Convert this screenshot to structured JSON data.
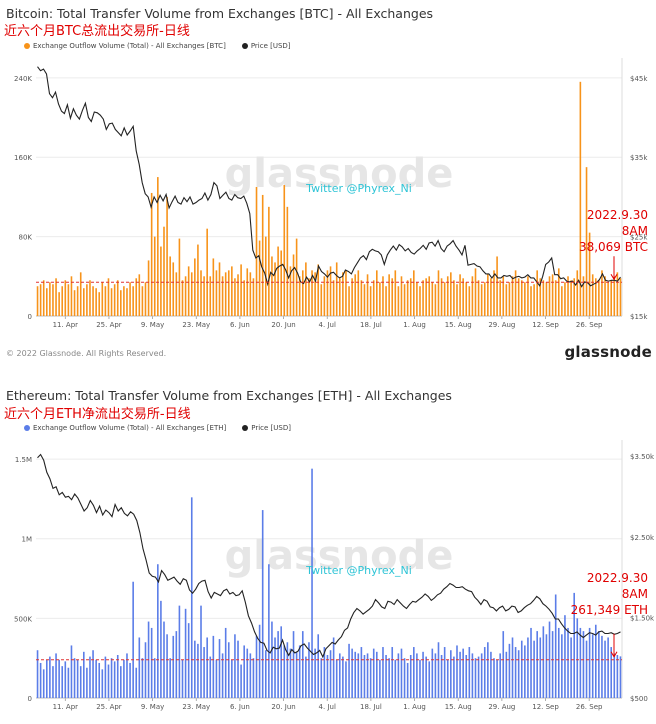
{
  "chart_data": [
    {
      "type": "bar",
      "title": "Bitcoin: Total Transfer Volume from Exchanges [BTC] - All Exchanges",
      "subtitle": "近六个月BTC总流出交易所-日线",
      "legend": [
        "Exchange Outflow Volume (Total) - All Exchanges [BTC]",
        "Price [USD]"
      ],
      "colors": {
        "bars": "#f7931a",
        "price": "#222222",
        "threshold": "#e03030"
      },
      "x_tick_labels": [
        "11. Apr",
        "25. Apr",
        "9. May",
        "23. May",
        "6. Jun",
        "20. Jun",
        "4. Jul",
        "18. Jul",
        "1. Aug",
        "15. Aug",
        "29. Aug",
        "12. Sep",
        "26. Sep"
      ],
      "y_left_ticks": [
        "0",
        "80K",
        "160K",
        "240K"
      ],
      "y_left_values": [
        0,
        80000,
        160000,
        240000
      ],
      "y_left_range": [
        0,
        260000
      ],
      "y_right_ticks": [
        "$15k",
        "$25k",
        "$35k",
        "$45k"
      ],
      "y_right_values": [
        15000,
        25000,
        35000,
        45000
      ],
      "y_right_range": [
        15000,
        47500
      ],
      "watermark": "glassnode",
      "overlay_text": "Twitter @Phyrex_Ni",
      "annotation": [
        "2022.9.30",
        "8AM",
        "38,069 BTC"
      ],
      "threshold_value": 34000,
      "grid": true,
      "outflow": [
        30000,
        32000,
        36000,
        28000,
        34000,
        32000,
        38000,
        24000,
        30000,
        36000,
        32000,
        40000,
        26000,
        30000,
        44000,
        28000,
        32000,
        36000,
        30000,
        28000,
        24000,
        34000,
        30000,
        38000,
        28000,
        32000,
        36000,
        26000,
        30000,
        28000,
        34000,
        30000,
        38000,
        42000,
        30000,
        34000,
        56000,
        124000,
        80000,
        140000,
        70000,
        90000,
        120000,
        60000,
        54000,
        44000,
        78000,
        36000,
        40000,
        50000,
        44000,
        58000,
        72000,
        46000,
        40000,
        88000,
        40000,
        58000,
        46000,
        54000,
        40000,
        44000,
        46000,
        50000,
        38000,
        42000,
        52000,
        36000,
        48000,
        44000,
        38000,
        130000,
        76000,
        122000,
        80000,
        110000,
        60000,
        54000,
        70000,
        66000,
        132000,
        110000,
        50000,
        62000,
        78000,
        40000,
        46000,
        54000,
        38000,
        46000,
        44000,
        52000,
        32000,
        40000,
        46000,
        50000,
        36000,
        54000,
        38000,
        44000,
        46000,
        30000,
        38000,
        42000,
        46000,
        36000,
        32000,
        42000,
        30000,
        36000,
        46000,
        34000,
        40000,
        30000,
        42000,
        38000,
        46000,
        30000,
        40000,
        32000,
        36000,
        38000,
        46000,
        34000,
        30000,
        36000,
        38000,
        40000,
        34000,
        32000,
        46000,
        38000,
        34000,
        40000,
        44000,
        36000,
        32000,
        42000,
        38000,
        34000,
        30000,
        40000,
        48000,
        36000,
        32000,
        34000,
        42000,
        38000,
        46000,
        60000,
        36000,
        40000,
        32000,
        34000,
        40000,
        46000,
        38000,
        36000,
        34000,
        40000,
        30000,
        32000,
        46000,
        38000,
        36000,
        34000,
        40000,
        42000,
        36000,
        48000,
        30000,
        34000,
        40000,
        36000,
        38000,
        46000,
        236000,
        40000,
        150000,
        84000,
        42000,
        38000,
        36000,
        46000,
        40000,
        34000,
        36000,
        40000,
        44000,
        38069
      ],
      "price": [
        46400,
        45900,
        46100,
        45500,
        43000,
        42500,
        43200,
        41700,
        40800,
        40500,
        41600,
        39900,
        41100,
        40300,
        39800,
        40900,
        41800,
        40000,
        39500,
        40700,
        40600,
        40300,
        39800,
        38500,
        39200,
        39300,
        38500,
        38100,
        37700,
        38700,
        37800,
        38300,
        38900,
        35800,
        34100,
        31800,
        30400,
        30000,
        28700,
        30000,
        29300,
        30200,
        29500,
        30300,
        28600,
        29400,
        30100,
        29300,
        29100,
        29900,
        29400,
        30000,
        29100,
        29300,
        29600,
        29800,
        30500,
        29600,
        30300,
        31800,
        31400,
        29800,
        30200,
        30600,
        29800,
        29600,
        30300,
        29900,
        29800,
        30100,
        29200,
        27900,
        23300,
        22300,
        22600,
        21200,
        20400,
        19000,
        20500,
        20100,
        21000,
        21300,
        21500,
        20800,
        19800,
        20700,
        21100,
        20400,
        19300,
        19100,
        19900,
        19300,
        20100,
        19400,
        21300,
        20600,
        20300,
        19900,
        20400,
        20500,
        20100,
        19800,
        20000,
        20800,
        20600,
        20300,
        21100,
        21700,
        22300,
        22600,
        22100,
        23100,
        23400,
        23200,
        23100,
        22700,
        21500,
        22700,
        23300,
        23800,
        23300,
        24000,
        23700,
        23200,
        23500,
        23000,
        22800,
        23200,
        23500,
        23900,
        23400,
        24200,
        24300,
        23800,
        24500,
        23500,
        23100,
        23800,
        24100,
        24500,
        23800,
        23300,
        22700,
        23900,
        21400,
        21500,
        21600,
        21300,
        21200,
        20700,
        20300,
        20300,
        19800,
        20300,
        19800,
        19800,
        20100,
        20000,
        20100,
        19700,
        19900,
        20000,
        19800,
        19900,
        20200,
        19800,
        19800,
        19300,
        18800,
        20000,
        21500,
        21800,
        22300,
        20200,
        20200,
        19700,
        19800,
        19400,
        19300,
        19400,
        18900,
        19500,
        18700,
        19300,
        19200,
        18800,
        19000,
        19200,
        19600,
        20300,
        19500,
        19400,
        19500,
        19500,
        19400,
        19900
      ]
    },
    {
      "type": "bar",
      "title": "Ethereum: Total Transfer Volume from Exchanges [ETH] - All Exchanges",
      "subtitle": "近六个月ETH净流出交易所-日线",
      "legend": [
        "Exchange Outflow Volume (Total) - All Exchanges [ETH]",
        "Price [USD]"
      ],
      "colors": {
        "bars": "#5b7de8",
        "price": "#222222",
        "threshold": "#e03030"
      },
      "x_tick_labels": [
        "11. Apr",
        "25. Apr",
        "9. May",
        "23. May",
        "6. Jun",
        "20. Jun",
        "4. Jul",
        "18. Jul",
        "1. Aug",
        "15. Aug",
        "29. Aug",
        "12. Sep",
        "26. Sep"
      ],
      "y_left_ticks": [
        "0",
        "500K",
        "1M",
        "1.5M"
      ],
      "y_left_values": [
        0,
        500000,
        1000000,
        1500000
      ],
      "y_left_range": [
        0,
        1620000
      ],
      "y_right_ticks": [
        "$500",
        "$1.50k",
        "$2.50k",
        "$3.50k"
      ],
      "y_right_values": [
        500,
        1500,
        2500,
        3500
      ],
      "y_right_range": [
        500,
        3700
      ],
      "watermark": "glassnode",
      "overlay_text": "Twitter @Phyrex_Ni",
      "annotation": [
        "2022.9.30",
        "8AM",
        "261,349 ETH"
      ],
      "threshold_value": 240000,
      "grid": true,
      "outflow": [
        300000,
        220000,
        180000,
        240000,
        260000,
        200000,
        280000,
        240000,
        200000,
        230000,
        190000,
        330000,
        250000,
        240000,
        200000,
        290000,
        190000,
        260000,
        300000,
        240000,
        220000,
        180000,
        260000,
        210000,
        250000,
        230000,
        270000,
        200000,
        240000,
        280000,
        220000,
        730000,
        190000,
        380000,
        250000,
        350000,
        480000,
        440000,
        250000,
        840000,
        610000,
        480000,
        400000,
        250000,
        390000,
        420000,
        580000,
        240000,
        560000,
        470000,
        1260000,
        360000,
        340000,
        580000,
        320000,
        380000,
        260000,
        390000,
        240000,
        370000,
        280000,
        440000,
        350000,
        240000,
        400000,
        360000,
        210000,
        330000,
        310000,
        280000,
        250000,
        390000,
        460000,
        1180000,
        300000,
        840000,
        480000,
        380000,
        420000,
        450000,
        330000,
        350000,
        310000,
        420000,
        290000,
        330000,
        420000,
        260000,
        350000,
        1440000,
        310000,
        400000,
        250000,
        320000,
        270000,
        300000,
        380000,
        240000,
        280000,
        260000,
        230000,
        340000,
        310000,
        290000,
        280000,
        320000,
        270000,
        280000,
        250000,
        310000,
        290000,
        240000,
        320000,
        270000,
        250000,
        320000,
        240000,
        280000,
        310000,
        250000,
        220000,
        270000,
        320000,
        280000,
        240000,
        290000,
        260000,
        230000,
        310000,
        280000,
        350000,
        270000,
        320000,
        240000,
        300000,
        260000,
        330000,
        290000,
        310000,
        270000,
        320000,
        280000,
        250000,
        260000,
        280000,
        320000,
        350000,
        290000,
        250000,
        240000,
        280000,
        420000,
        290000,
        340000,
        380000,
        320000,
        300000,
        360000,
        330000,
        380000,
        440000,
        360000,
        420000,
        380000,
        450000,
        400000,
        480000,
        420000,
        650000,
        440000,
        400000,
        520000,
        440000,
        380000,
        660000,
        500000,
        440000,
        420000,
        360000,
        440000,
        400000,
        460000,
        420000,
        390000,
        360000,
        380000,
        320000,
        280000,
        270000,
        261349
      ],
      "price": [
        3480,
        3520,
        3450,
        3300,
        3220,
        3100,
        3120,
        3020,
        3050,
        2990,
        3000,
        2960,
        3030,
        2980,
        2900,
        2820,
        2860,
        2950,
        2890,
        2800,
        2880,
        2770,
        2830,
        2800,
        2750,
        2900,
        2820,
        2860,
        2790,
        2760,
        2810,
        2780,
        2700,
        2550,
        2350,
        2210,
        2050,
        2010,
        2000,
        1940,
        2080,
        2030,
        1960,
        1980,
        2000,
        1950,
        1910,
        1980,
        1960,
        1840,
        1800,
        1850,
        1920,
        1950,
        1960,
        1820,
        1740,
        1810,
        1790,
        1770,
        1830,
        1850,
        1790,
        1810,
        1770,
        1780,
        1830,
        1690,
        1520,
        1430,
        1320,
        1240,
        1190,
        1180,
        1090,
        1060,
        1130,
        1110,
        1120,
        1220,
        1100,
        1030,
        1100,
        1060,
        1080,
        1150,
        1170,
        1120,
        1080,
        1040,
        1060,
        1090,
        1010,
        1110,
        1150,
        1190,
        1170,
        1220,
        1260,
        1340,
        1370,
        1480,
        1560,
        1610,
        1580,
        1540,
        1570,
        1600,
        1640,
        1720,
        1680,
        1630,
        1610,
        1700,
        1690,
        1660,
        1720,
        1680,
        1640,
        1610,
        1660,
        1700,
        1690,
        1720,
        1750,
        1790,
        1760,
        1710,
        1740,
        1780,
        1800,
        1850,
        1880,
        1920,
        1900,
        1870,
        1870,
        1880,
        1850,
        1830,
        1820,
        1750,
        1710,
        1660,
        1720,
        1700,
        1630,
        1620,
        1580,
        1620,
        1640,
        1580,
        1600,
        1640,
        1630,
        1560,
        1580,
        1620,
        1650,
        1670,
        1710,
        1760,
        1730,
        1670,
        1640,
        1600,
        1550,
        1480,
        1480,
        1420,
        1370,
        1330,
        1300,
        1300,
        1320,
        1280,
        1250,
        1280,
        1310,
        1300,
        1280,
        1320,
        1330,
        1300,
        1300,
        1310,
        1290,
        1300,
        1320
      ]
    }
  ],
  "copyright": "© 2022 Glassnode. All Rights Reserved.",
  "brand": "glassnode"
}
